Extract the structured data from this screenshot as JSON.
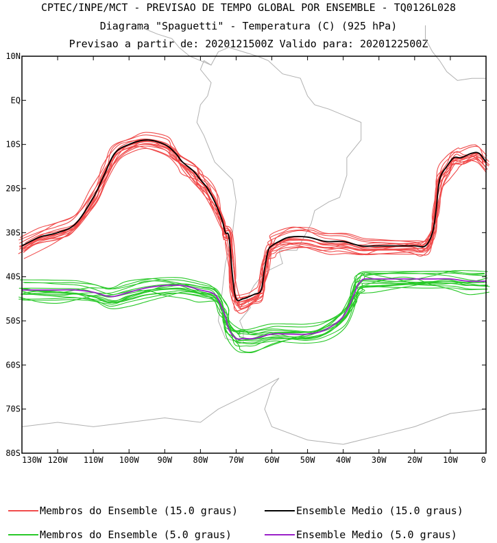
{
  "header": {
    "line1": "CPTEC/INPE/MCT - PREVISAO DE TEMPO GLOBAL POR ENSEMBLE - TQ0126L028",
    "line2": "Diagrama \"Spaguetti\" - Temperatura (C) (925 hPa)",
    "line3": "Previsao a partir de: 2020121500Z  Valido para: 2020122500Z"
  },
  "map": {
    "lat_labels": [
      "10N",
      "EQ",
      "10S",
      "20S",
      "30S",
      "40S",
      "50S",
      "60S",
      "70S",
      "80S"
    ],
    "lon_labels": [
      "130W",
      "120W",
      "110W",
      "100W",
      "90W",
      "80W",
      "70W",
      "60W",
      "50W",
      "40W",
      "30W",
      "20W",
      "10W",
      "0"
    ],
    "lat_range": [
      -80,
      10
    ],
    "lon_range": [
      -130,
      0
    ],
    "coast_color": "#b0b0b0"
  },
  "legend": {
    "members_15": "Membros do Ensemble (15.0 graus)",
    "mean_15": "Ensemble Medio (15.0 graus)",
    "members_5": "Membros do Ensemble (5.0 graus)",
    "mean_5": "Ensemble Medio (5.0 graus)",
    "color_members_15": "#f04a4a",
    "color_mean_15": "#000000",
    "color_members_5": "#28c828",
    "color_mean_5": "#9a1fc8"
  },
  "chart_data": {
    "type": "line",
    "series": [
      {
        "name": "Ensemble Medio (15.0 graus)",
        "x": [
          -130,
          -125,
          -120,
          -115,
          -110,
          -107,
          -104,
          -100,
          -95,
          -90,
          -87,
          -85,
          -82,
          -80,
          -78,
          -76,
          -74,
          -73,
          -72,
          -71,
          -70,
          -68,
          -65,
          -63,
          -62,
          -61,
          -60,
          -58,
          -55,
          -50,
          -45,
          -40,
          -35,
          -30,
          -25,
          -20,
          -17,
          -15,
          -14,
          -13,
          -11,
          -9,
          -7,
          -4,
          -2,
          0
        ],
        "y": [
          -33,
          -31,
          -30,
          -28,
          -22,
          -17,
          -12,
          -10,
          -9,
          -10,
          -12,
          -14,
          -16,
          -18,
          -20,
          -23,
          -27,
          -30,
          -31,
          -40,
          -45,
          -45,
          -44,
          -43,
          -38,
          -34,
          -33,
          -32,
          -31,
          -31,
          -32,
          -32,
          -33,
          -33,
          -33,
          -33,
          -33,
          -30,
          -25,
          -18,
          -15,
          -13,
          -13,
          -12,
          -12,
          -14
        ]
      },
      {
        "name": "Ensemble Medio (5.0 graus)",
        "x": [
          -130,
          -125,
          -120,
          -115,
          -110,
          -105,
          -100,
          -95,
          -90,
          -85,
          -80,
          -76,
          -74,
          -73,
          -72,
          -70,
          -68,
          -65,
          -60,
          -55,
          -50,
          -45,
          -40,
          -37,
          -36,
          -35,
          -34,
          -30,
          -25,
          -20,
          -15,
          -10,
          -5,
          0
        ],
        "y": [
          -43,
          -43,
          -43,
          -43,
          -43.5,
          -44.5,
          -43.5,
          -42.5,
          -42,
          -42,
          -43,
          -44,
          -47,
          -49,
          -52,
          -54,
          -54,
          -54,
          -53,
          -53,
          -53,
          -52,
          -49,
          -44,
          -42,
          -41,
          -40.5,
          -40.5,
          -40.5,
          -40.5,
          -40.5,
          -40.5,
          -41,
          -41
        ]
      }
    ],
    "xlim": [
      -130,
      0
    ],
    "ylim": [
      -80,
      10
    ]
  }
}
